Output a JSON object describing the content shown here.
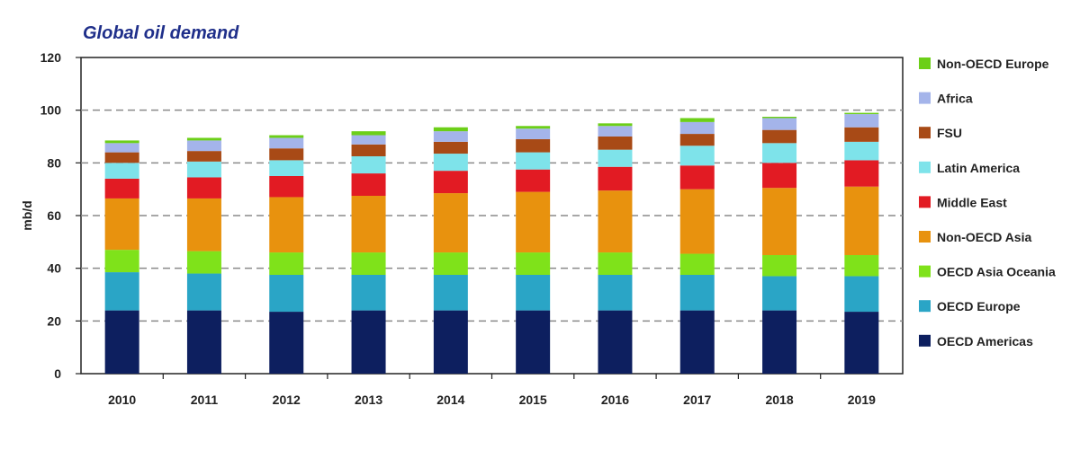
{
  "chart_data": {
    "type": "stacked-bar",
    "title": "Global oil demand",
    "xlabel": "",
    "ylabel": "mb/d",
    "ylim": [
      0,
      120
    ],
    "yticks": [
      0,
      20,
      40,
      60,
      80,
      100,
      120
    ],
    "categories": [
      "2010",
      "2011",
      "2012",
      "2013",
      "2014",
      "2015",
      "2016",
      "2017",
      "2018",
      "2019"
    ],
    "legend_position": "right",
    "series": [
      {
        "name": "OECD Americas",
        "color": "#0d1f5f",
        "values": [
          24,
          24,
          23.5,
          24,
          24,
          24,
          24,
          24,
          24,
          23.5
        ]
      },
      {
        "name": "OECD Europe",
        "color": "#2aa5c6",
        "values": [
          14.5,
          14,
          14,
          13.5,
          13.5,
          13.5,
          13.5,
          13.5,
          13,
          13.5
        ]
      },
      {
        "name": "OECD Asia Oceania",
        "color": "#7fe21a",
        "values": [
          8.5,
          8.5,
          8.5,
          8.5,
          8.5,
          8.5,
          8.5,
          8,
          8,
          8
        ]
      },
      {
        "name": "Non-OECD Asia",
        "color": "#e8920e",
        "values": [
          19.5,
          20,
          21,
          21.5,
          22.5,
          23,
          23.5,
          24.5,
          25.5,
          26
        ]
      },
      {
        "name": "Middle East",
        "color": "#e21b23",
        "values": [
          7.5,
          8,
          8,
          8.5,
          8.5,
          8.5,
          9,
          9,
          9.5,
          10
        ]
      },
      {
        "name": "Latin America",
        "color": "#7ee3ea",
        "values": [
          6,
          6,
          6,
          6.5,
          6.5,
          6.5,
          6.5,
          7.5,
          7.5,
          7
        ]
      },
      {
        "name": "FSU",
        "color": "#a84a16",
        "values": [
          4,
          4,
          4.5,
          4.5,
          4.5,
          5,
          5,
          4.5,
          5,
          5.5
        ]
      },
      {
        "name": "Africa",
        "color": "#a4b4ea",
        "values": [
          3.5,
          4,
          4,
          3.5,
          4,
          4,
          4,
          4.5,
          4.5,
          5
        ]
      },
      {
        "name": "Non-OECD Europe",
        "color": "#6ccf18",
        "values": [
          1,
          1,
          1,
          1.5,
          1.5,
          1,
          1,
          1.5,
          0.5,
          0.5
        ]
      }
    ]
  }
}
